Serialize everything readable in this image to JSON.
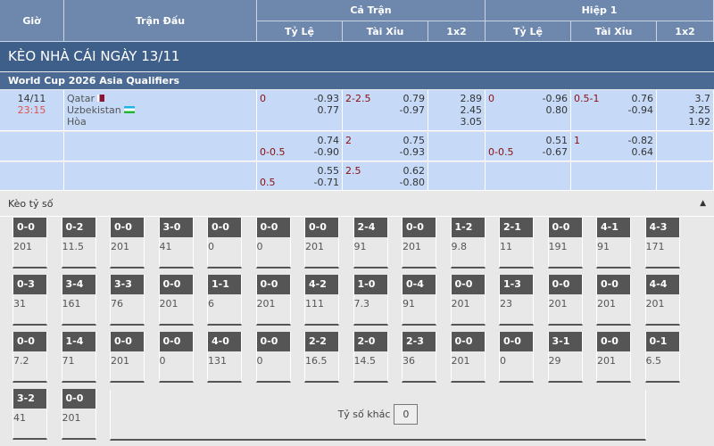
{
  "header": {
    "gio": "Giờ",
    "tran_dau": "Trận Đấu",
    "ca_tran": "Cả Trận",
    "hiep1": "Hiệp 1",
    "ty_le": "Tỷ Lệ",
    "tai_xiu": "Tài Xỉu",
    "x12": "1x2"
  },
  "title": "KÈO NHÀ CÁI NGÀY 13/11",
  "league": "World Cup 2026 Asia Qualifiers",
  "match": {
    "date": "14/11",
    "time": "23:15",
    "home": "Qatar",
    "away": "Uzbekistan",
    "draw": "Hòa"
  },
  "colors": {
    "header": "#6d87ad",
    "title_bar": "#3f5f8b",
    "row": "#c6daf7",
    "handicap": "#8b0e0e",
    "time": "#e05050"
  },
  "rows": [
    {
      "ft_hdp": "0",
      "ft_hdp_v": [
        "-0.93",
        "0.77"
      ],
      "ft_ou": "2-2.5",
      "ft_ou_v": [
        "0.79",
        "-0.97"
      ],
      "ft_1x2": [
        "2.89",
        "2.45",
        "3.05"
      ],
      "h1_hdp": "0",
      "h1_hdp_v": [
        "-0.96",
        "0.80"
      ],
      "h1_ou": "0.5-1",
      "h1_ou_v": [
        "0.76",
        "-0.94"
      ],
      "h1_1x2": [
        "3.7",
        "3.25",
        "1.92"
      ]
    },
    {
      "ft_hdp": "0-0.5",
      "ft_hdp_v": [
        "0.74",
        "-0.90"
      ],
      "ft_ou": "2",
      "ft_ou_v": [
        "0.75",
        "-0.93"
      ],
      "h1_hdp": "0-0.5",
      "h1_hdp_v": [
        "0.51",
        "-0.67"
      ],
      "h1_ou": "1",
      "h1_ou_v": [
        "-0.82",
        "0.64"
      ]
    },
    {
      "ft_hdp": "0.5",
      "ft_hdp_v": [
        "0.55",
        "-0.71"
      ],
      "ft_ou": "2.5",
      "ft_ou_v": [
        "0.62",
        "-0.80"
      ]
    }
  ],
  "correct_score": {
    "title": "Kèo tỷ số",
    "other_label": "Tỷ số khác",
    "other_value": "0",
    "cells": [
      [
        "0-0",
        "201"
      ],
      [
        "0-2",
        "11.5"
      ],
      [
        "0-0",
        "201"
      ],
      [
        "3-0",
        "41"
      ],
      [
        "0-0",
        "0"
      ],
      [
        "0-0",
        "0"
      ],
      [
        "0-0",
        "201"
      ],
      [
        "2-4",
        "91"
      ],
      [
        "0-0",
        "201"
      ],
      [
        "1-2",
        "9.8"
      ],
      [
        "2-1",
        "11"
      ],
      [
        "0-0",
        "191"
      ],
      [
        "4-1",
        "91"
      ],
      [
        "4-3",
        "171"
      ],
      [
        "0-3",
        "31"
      ],
      [
        "3-4",
        "161"
      ],
      [
        "3-3",
        "76"
      ],
      [
        "0-0",
        "201"
      ],
      [
        "1-1",
        "6"
      ],
      [
        "0-0",
        "201"
      ],
      [
        "4-2",
        "111"
      ],
      [
        "1-0",
        "7.3"
      ],
      [
        "0-4",
        "91"
      ],
      [
        "0-0",
        "201"
      ],
      [
        "1-3",
        "23"
      ],
      [
        "0-0",
        "201"
      ],
      [
        "0-0",
        "201"
      ],
      [
        "4-4",
        "201"
      ],
      [
        "0-0",
        "7.2"
      ],
      [
        "1-4",
        "71"
      ],
      [
        "0-0",
        "201"
      ],
      [
        "0-0",
        "0"
      ],
      [
        "4-0",
        "131"
      ],
      [
        "0-0",
        "0"
      ],
      [
        "2-2",
        "16.5"
      ],
      [
        "2-0",
        "14.5"
      ],
      [
        "2-3",
        "36"
      ],
      [
        "0-0",
        "201"
      ],
      [
        "0-0",
        "0"
      ],
      [
        "3-1",
        "29"
      ],
      [
        "0-0",
        "201"
      ],
      [
        "0-1",
        "6.5"
      ],
      [
        "3-2",
        "41"
      ],
      [
        "0-0",
        "201"
      ]
    ]
  }
}
